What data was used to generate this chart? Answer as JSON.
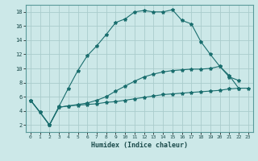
{
  "xlabel": "Humidex (Indice chaleur)",
  "background_color": "#cce8e8",
  "grid_color": "#aacccc",
  "line_color": "#1a6e6e",
  "xlim": [
    -0.5,
    23.5
  ],
  "ylim": [
    1.0,
    19.0
  ],
  "xticks": [
    0,
    1,
    2,
    3,
    4,
    5,
    6,
    7,
    8,
    9,
    10,
    11,
    12,
    13,
    14,
    15,
    16,
    17,
    18,
    19,
    20,
    21,
    22,
    23
  ],
  "yticks": [
    2,
    4,
    6,
    8,
    10,
    12,
    14,
    16,
    18
  ],
  "series1_x": [
    0,
    1,
    2,
    3,
    4,
    5,
    6,
    7,
    8,
    9,
    10,
    11,
    12,
    13,
    14,
    15,
    16,
    17,
    18,
    19,
    20,
    21,
    22
  ],
  "series1_y": [
    5.5,
    3.8,
    2.0,
    4.6,
    7.2,
    9.7,
    11.8,
    13.2,
    14.8,
    16.5,
    17.0,
    18.0,
    18.2,
    18.0,
    18.0,
    18.3,
    16.8,
    16.3,
    13.8,
    12.0,
    10.3,
    9.0,
    7.2
  ],
  "series2_x": [
    0,
    1,
    2,
    3,
    4,
    5,
    6,
    7,
    8,
    9,
    10,
    11,
    12,
    13,
    14,
    15,
    16,
    17,
    18,
    19,
    20,
    21,
    22,
    23
  ],
  "series2_y": [
    5.5,
    3.8,
    2.0,
    4.5,
    4.7,
    4.8,
    4.9,
    5.0,
    5.2,
    5.3,
    5.5,
    5.7,
    5.9,
    6.1,
    6.3,
    6.4,
    6.5,
    6.6,
    6.7,
    6.8,
    6.9,
    7.1,
    7.2,
    7.2
  ],
  "series3_x": [
    0,
    1,
    2,
    3,
    4,
    5,
    6,
    7,
    8,
    9,
    10,
    11,
    12,
    13,
    14,
    15,
    16,
    17,
    18,
    19,
    20,
    21,
    22
  ],
  "series3_y": [
    5.5,
    3.8,
    2.0,
    4.5,
    4.7,
    4.9,
    5.1,
    5.5,
    6.0,
    6.8,
    7.5,
    8.2,
    8.8,
    9.2,
    9.5,
    9.7,
    9.8,
    9.9,
    9.9,
    10.0,
    10.3,
    8.8,
    8.3
  ]
}
